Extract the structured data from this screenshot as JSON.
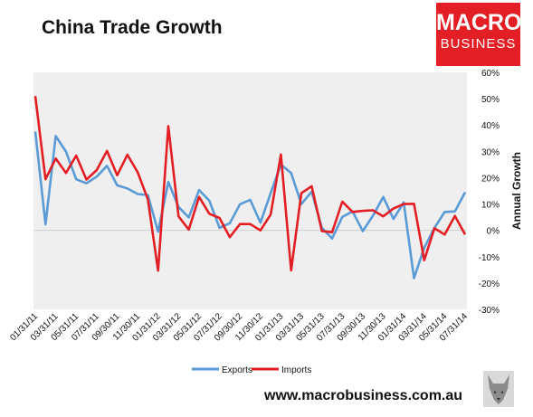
{
  "title": "China Trade Growth",
  "logo": {
    "line1": "MACRO",
    "line2": "BUSINESS",
    "color": "#e31e24"
  },
  "website": "www.macrobusiness.com.au",
  "chart_data": {
    "type": "line",
    "title": "China Trade Growth",
    "xlabel": "",
    "ylabel": "Annual Growth",
    "ylim": [
      -30,
      60
    ],
    "yticks": [
      "-30%",
      "-20%",
      "-10%",
      "0%",
      "10%",
      "20%",
      "30%",
      "40%",
      "50%",
      "60%"
    ],
    "y_axis_side": "right",
    "grid": false,
    "plot_background": "#efefef",
    "legend_position": "bottom",
    "x_tick_labels": [
      "01/31/11",
      "03/31/11",
      "05/31/11",
      "07/31/11",
      "09/30/11",
      "11/30/11",
      "01/31/12",
      "03/31/12",
      "05/31/12",
      "07/31/12",
      "09/30/12",
      "11/30/12",
      "01/31/13",
      "03/31/13",
      "05/31/13",
      "07/31/13",
      "09/30/13",
      "11/30/13",
      "01/31/14",
      "03/31/14",
      "05/31/14",
      "07/31/14"
    ],
    "x": [
      "2011-01-31",
      "2011-02-28",
      "2011-03-31",
      "2011-04-30",
      "2011-05-31",
      "2011-06-30",
      "2011-07-31",
      "2011-08-31",
      "2011-09-30",
      "2011-10-31",
      "2011-11-30",
      "2011-12-31",
      "2012-01-31",
      "2012-02-29",
      "2012-03-31",
      "2012-04-30",
      "2012-05-31",
      "2012-06-30",
      "2012-07-31",
      "2012-08-31",
      "2012-09-30",
      "2012-10-31",
      "2012-11-30",
      "2012-12-31",
      "2013-01-31",
      "2013-02-28",
      "2013-03-31",
      "2013-04-30",
      "2013-05-31",
      "2013-06-30",
      "2013-07-31",
      "2013-08-31",
      "2013-09-30",
      "2013-10-31",
      "2013-11-30",
      "2013-12-31",
      "2014-01-31",
      "2014-02-28",
      "2014-03-31",
      "2014-04-30",
      "2014-05-31",
      "2014-06-30",
      "2014-07-31"
    ],
    "series": [
      {
        "name": "Exports",
        "color": "#5b9bd5",
        "values": [
          37.5,
          2.3,
          35.8,
          29.9,
          19.4,
          17.9,
          20.4,
          24.5,
          17.1,
          15.9,
          13.8,
          13.4,
          -0.5,
          18.4,
          8.9,
          4.9,
          15.3,
          11.3,
          1.0,
          2.7,
          9.9,
          11.6,
          2.9,
          14.1,
          25.0,
          21.8,
          10.0,
          14.7,
          1.0,
          -3.1,
          5.1,
          7.2,
          -0.3,
          5.6,
          12.7,
          4.3,
          10.6,
          -18.1,
          -6.6,
          0.9,
          7.0,
          7.2,
          14.5
        ]
      },
      {
        "name": "Imports",
        "color": "#e31e24",
        "values": [
          51.0,
          19.4,
          27.3,
          21.8,
          28.4,
          19.3,
          22.9,
          30.2,
          20.9,
          28.7,
          22.1,
          11.8,
          -15.3,
          39.6,
          5.3,
          0.3,
          12.7,
          6.3,
          4.7,
          -2.6,
          2.4,
          2.4,
          0.0,
          6.0,
          28.8,
          -15.2,
          14.1,
          16.8,
          -0.3,
          -0.7,
          10.9,
          7.0,
          7.4,
          7.6,
          5.3,
          8.3,
          10.0,
          10.1,
          -11.3,
          0.8,
          -1.6,
          5.5,
          -1.6
        ]
      }
    ]
  }
}
